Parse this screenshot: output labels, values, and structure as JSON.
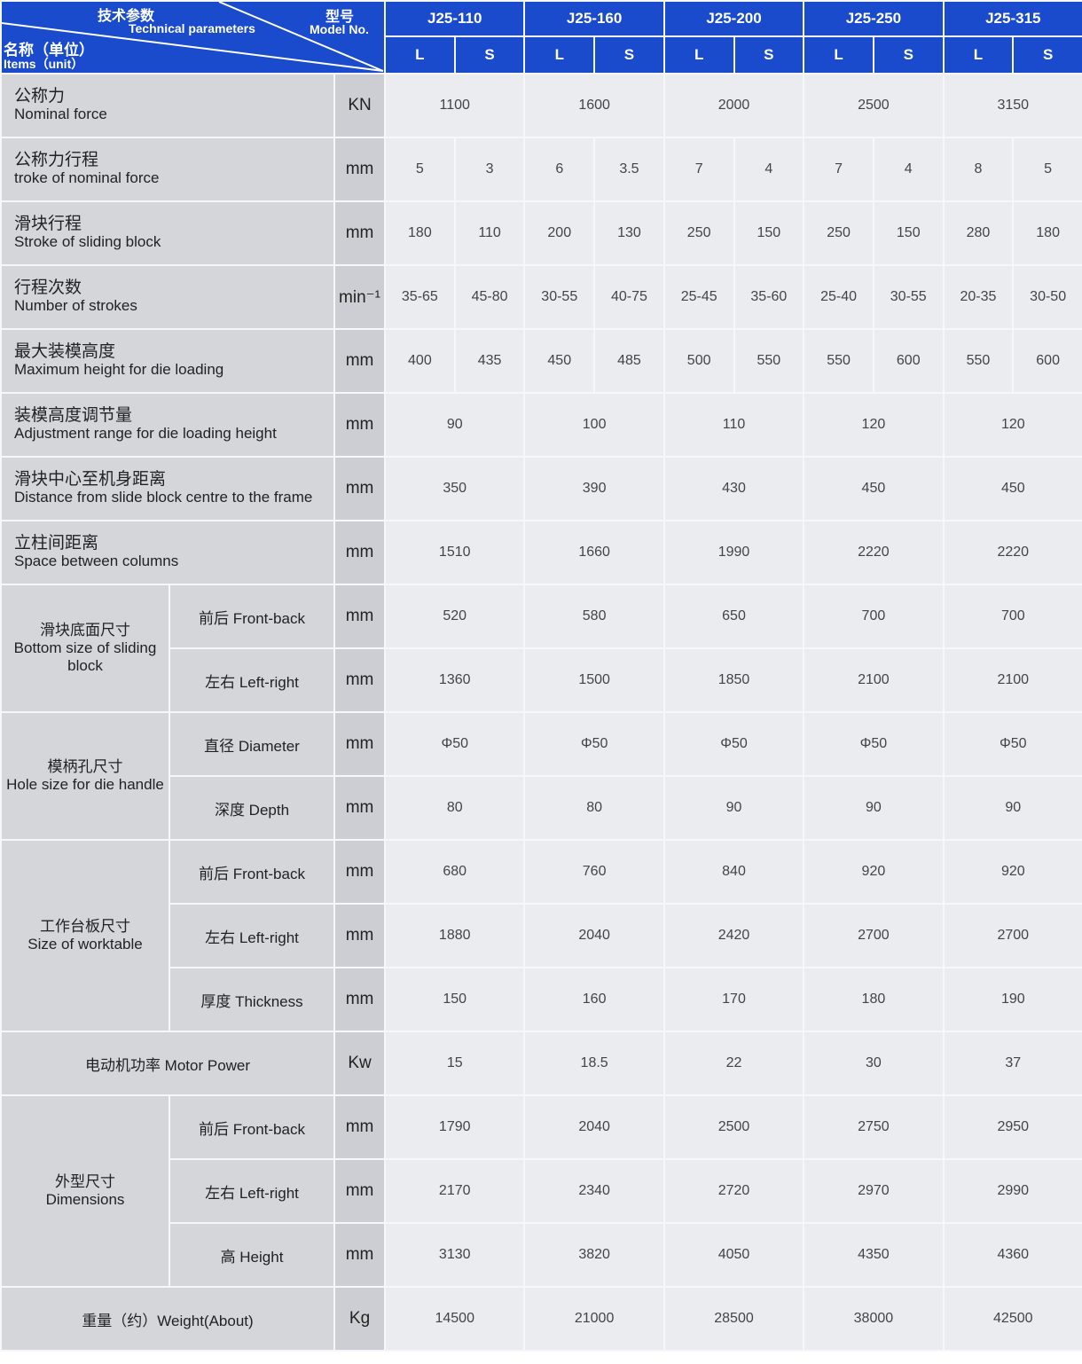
{
  "header": {
    "tech_cn": "技术参数",
    "tech_en": "Technical parameters",
    "model_cn": "型号",
    "model_en": "Model No.",
    "items_cn": "名称（单位）",
    "items_en": "Items（unit）",
    "models": [
      "J25-110",
      "J25-160",
      "J25-200",
      "J25-250",
      "J25-315"
    ],
    "sub_cols": [
      "L",
      "S"
    ]
  },
  "colors": {
    "header_blue": "#1a4bcc",
    "label_gray": "#d5d6da",
    "value_gray": "#ebecf0"
  },
  "rows": [
    {
      "cn": "公称力",
      "en": "Nominal force",
      "unit": "KN",
      "values": [
        "1100",
        "1600",
        "2000",
        "2500",
        "3150"
      ]
    },
    {
      "cn": "公称力行程",
      "en": "troke of nominal force",
      "unit": "mm",
      "values": [
        "5",
        "3",
        "6",
        "3.5",
        "7",
        "4",
        "7",
        "4",
        "8",
        "5"
      ]
    },
    {
      "cn": "滑块行程",
      "en": "Stroke of sliding block",
      "unit": "mm",
      "values": [
        "180",
        "110",
        "200",
        "130",
        "250",
        "150",
        "250",
        "150",
        "280",
        "180"
      ]
    },
    {
      "cn": "行程次数",
      "en": "Number of strokes",
      "unit": "min⁻¹",
      "values": [
        "35-65",
        "45-80",
        "30-55",
        "40-75",
        "25-45",
        "35-60",
        "25-40",
        "30-55",
        "20-35",
        "30-50"
      ]
    },
    {
      "cn": "最大装模高度",
      "en": "Maximum height for die loading",
      "unit": "mm",
      "values": [
        "400",
        "435",
        "450",
        "485",
        "500",
        "550",
        "550",
        "600",
        "550",
        "600"
      ]
    },
    {
      "cn": "装模高度调节量",
      "en": "Adjustment range for die loading height",
      "unit": "mm",
      "values": [
        "90",
        "100",
        "110",
        "120",
        "120"
      ]
    },
    {
      "cn": "滑块中心至机身距离",
      "en": "Distance from slide block centre to the frame",
      "unit": "mm",
      "values": [
        "350",
        "390",
        "430",
        "450",
        "450"
      ]
    },
    {
      "cn": "立柱间距离",
      "en": "Space between columns",
      "unit": "mm",
      "values": [
        "1510",
        "1660",
        "1990",
        "2220",
        "2220"
      ]
    },
    {
      "group": "滑块底面尺寸\nBottom size of sliding block",
      "span": 2,
      "sub": "前后 Front-back",
      "unit": "mm",
      "values": [
        "520",
        "580",
        "650",
        "700",
        "700"
      ]
    },
    {
      "sub": "左右 Left-right",
      "unit": "mm",
      "values": [
        "1360",
        "1500",
        "1850",
        "2100",
        "2100"
      ]
    },
    {
      "group": "模柄孔尺寸\nHole size for die handle",
      "span": 2,
      "sub": "直径 Diameter",
      "unit": "mm",
      "values": [
        "Φ50",
        "Φ50",
        "Φ50",
        "Φ50",
        "Φ50"
      ]
    },
    {
      "sub": "深度 Depth",
      "unit": "mm",
      "values": [
        "80",
        "80",
        "90",
        "90",
        "90"
      ]
    },
    {
      "group": "工作台板尺寸\nSize of worktable",
      "span": 3,
      "sub": "前后 Front-back",
      "unit": "mm",
      "values": [
        "680",
        "760",
        "840",
        "920",
        "920"
      ]
    },
    {
      "sub": "左右 Left-right",
      "unit": "mm",
      "values": [
        "1880",
        "2040",
        "2420",
        "2700",
        "2700"
      ]
    },
    {
      "sub": "厚度 Thickness",
      "unit": "mm",
      "values": [
        "150",
        "160",
        "170",
        "180",
        "190"
      ]
    },
    {
      "center": "电动机功率 Motor Power",
      "unit": "Kw",
      "values": [
        "15",
        "18.5",
        "22",
        "30",
        "37"
      ]
    },
    {
      "group": "外型尺寸\nDimensions",
      "span": 3,
      "sub": "前后 Front-back",
      "unit": "mm",
      "values": [
        "1790",
        "2040",
        "2500",
        "2750",
        "2950"
      ]
    },
    {
      "sub": "左右 Left-right",
      "unit": "mm",
      "values": [
        "2170",
        "2340",
        "2720",
        "2970",
        "2990"
      ]
    },
    {
      "sub": "高 Height",
      "unit": "mm",
      "values": [
        "3130",
        "3820",
        "4050",
        "4350",
        "4360"
      ]
    },
    {
      "center": "重量（约）Weight(About)",
      "unit": "Kg",
      "values": [
        "14500",
        "21000",
        "28500",
        "38000",
        "42500"
      ]
    }
  ]
}
